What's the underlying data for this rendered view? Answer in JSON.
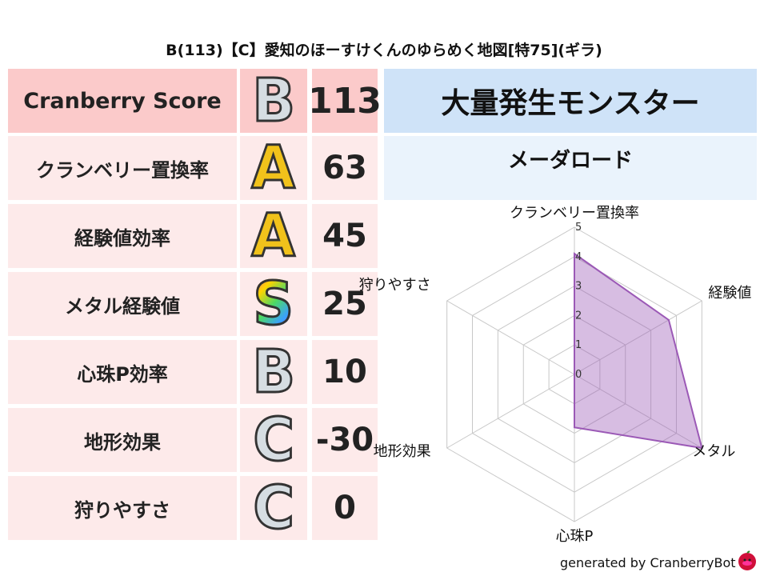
{
  "title": "B(113)【C】愛知のほーすけくんのゆらめく地図[特75](ギラ)",
  "rows": [
    {
      "label": "Cranberry Score",
      "grade": "B",
      "value": "113"
    },
    {
      "label": "クランベリー置換率",
      "grade": "A",
      "value": "63"
    },
    {
      "label": "経験値効率",
      "grade": "A",
      "value": "45"
    },
    {
      "label": "メタル経験値",
      "grade": "S",
      "value": "25"
    },
    {
      "label": "心珠P効率",
      "grade": "B",
      "value": "10"
    },
    {
      "label": "地形効果",
      "grade": "C",
      "value": "-30"
    },
    {
      "label": "狩りやすさ",
      "grade": "C",
      "value": "0"
    }
  ],
  "monster_header": "大量発生モンスター",
  "monster_name": "メーダロード",
  "chart_data": {
    "type": "radar",
    "axes": [
      "クランベリー置換率",
      "経験値",
      "メタル",
      "心珠P",
      "地形効果",
      "狩りやすさ"
    ],
    "values": [
      4.1,
      3.7,
      5.0,
      1.8,
      0,
      0
    ],
    "ticks": [
      "0",
      "1",
      "2",
      "3",
      "4",
      "5"
    ],
    "range": [
      0,
      5
    ],
    "color": "#9b59b6"
  },
  "credit": "generated by CranberryBot",
  "colors": {
    "header_pink": "#fbcaca",
    "row_pink": "#fdeaea",
    "header_blue": "#cfe3f8",
    "row_blue": "#eaf3fc"
  }
}
